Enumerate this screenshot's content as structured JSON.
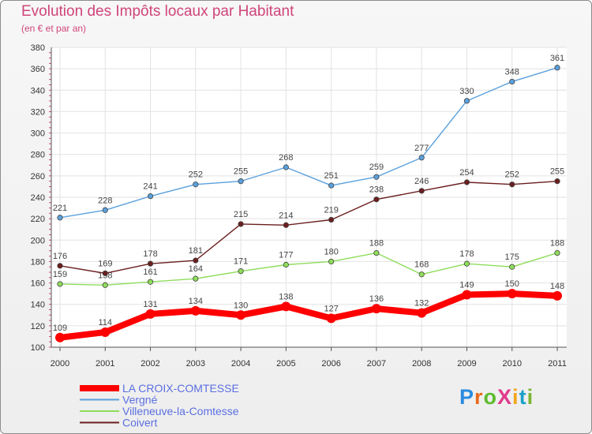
{
  "header": {
    "title": "Evolution des Impôts locaux par Habitant",
    "subtitle": "(en € et par an)"
  },
  "logo": {
    "text": "ProXiti",
    "colors": [
      "#2a8be0",
      "#e86a1a",
      "#5dbb2e",
      "#e03a8c",
      "#f2a51c",
      "#1aa0c8",
      "#7ab531"
    ]
  },
  "chart_data": {
    "type": "line",
    "title": "Evolution des Impôts locaux par Habitant",
    "subtitle": "(en € et par an)",
    "xlabel": "",
    "ylabel": "",
    "x": [
      "2000",
      "2001",
      "2002",
      "2003",
      "2004",
      "2005",
      "2006",
      "2007",
      "2008",
      "2009",
      "2010",
      "2011"
    ],
    "ylim": [
      100,
      380
    ],
    "yticks": [
      100,
      120,
      140,
      160,
      180,
      200,
      220,
      240,
      260,
      280,
      300,
      320,
      340,
      360,
      380
    ],
    "grid": true,
    "legend_position": "bottom-left",
    "series": [
      {
        "name": "LA CROIX-COMTESSE",
        "color": "#ff0000",
        "emphasis": true,
        "values": [
          109,
          114,
          131,
          134,
          130,
          138,
          127,
          136,
          132,
          149,
          150,
          148
        ]
      },
      {
        "name": "Vergné",
        "color": "#5aa0dc",
        "emphasis": false,
        "values": [
          221,
          228,
          241,
          252,
          255,
          268,
          251,
          259,
          277,
          330,
          348,
          361
        ]
      },
      {
        "name": "Villeneuve-la-Comtesse",
        "color": "#8edd5a",
        "emphasis": false,
        "values": [
          159,
          158,
          161,
          164,
          171,
          177,
          180,
          188,
          168,
          178,
          175,
          188
        ]
      },
      {
        "name": "Coivert",
        "color": "#6b1e1e",
        "emphasis": false,
        "values": [
          176,
          169,
          178,
          181,
          215,
          214,
          219,
          238,
          246,
          254,
          252,
          255
        ]
      }
    ]
  }
}
